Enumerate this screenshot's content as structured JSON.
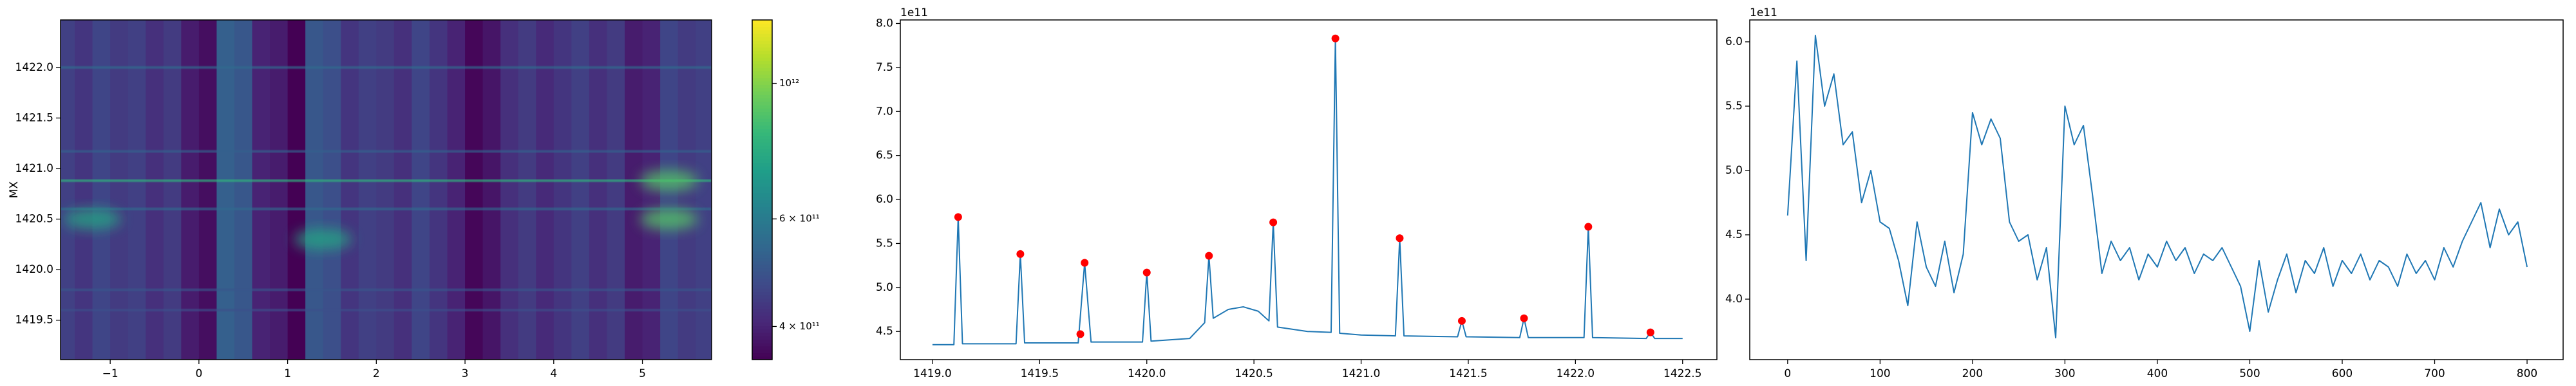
{
  "chart_data": [
    {
      "type": "heatmap",
      "ylabel": "MX",
      "xlim": [
        -1.56,
        5.78
      ],
      "ylim": [
        1419.11,
        1422.47
      ],
      "xticks": [
        {
          "value": -1,
          "label": "−1"
        },
        0,
        1,
        2,
        3,
        4,
        5
      ],
      "yticks": [
        1419.5,
        {
          "value": 1420.0,
          "label": "1420.0"
        },
        1420.5,
        {
          "value": 1421.0,
          "label": "1421.0"
        },
        1421.5,
        {
          "value": 1422.0,
          "label": "1422.0"
        }
      ],
      "x_edges": [
        -1.6,
        -1.4,
        -1.2,
        -1.0,
        -0.8,
        -0.6,
        -0.4,
        -0.2,
        0.0,
        0.2,
        0.4,
        0.6,
        0.8,
        1.0,
        1.2,
        1.4,
        1.6,
        1.8,
        2.0,
        2.2,
        2.4,
        2.6,
        2.8,
        3.0,
        3.2,
        3.4,
        3.6,
        3.8,
        4.0,
        4.2,
        4.4,
        4.6,
        4.8,
        5.0,
        5.2,
        5.4,
        5.6,
        5.8
      ],
      "column_values": [
        450000000000.0,
        430000000000.0,
        460000000000.0,
        440000000000.0,
        450000000000.0,
        420000000000.0,
        440000000000.0,
        390000000000.0,
        370000000000.0,
        520000000000.0,
        500000000000.0,
        400000000000.0,
        390000000000.0,
        350000000000.0,
        500000000000.0,
        480000000000.0,
        430000000000.0,
        450000000000.0,
        440000000000.0,
        420000000000.0,
        460000000000.0,
        430000000000.0,
        400000000000.0,
        360000000000.0,
        380000000000.0,
        420000000000.0,
        440000000000.0,
        410000000000.0,
        430000000000.0,
        450000000000.0,
        420000000000.0,
        440000000000.0,
        390000000000.0,
        400000000000.0,
        460000000000.0,
        440000000000.0,
        450000000000.0
      ],
      "row_lines": [
        {
          "y": 1422.0,
          "value": 550000000000.0
        },
        {
          "y": 1421.17,
          "value": 520000000000.0
        },
        {
          "y": 1420.88,
          "value": 800000000000.0
        },
        {
          "y": 1420.6,
          "value": 550000000000.0
        },
        {
          "y": 1419.8,
          "value": 500000000000.0
        },
        {
          "y": 1419.6,
          "value": 480000000000.0
        }
      ],
      "blobs": [
        {
          "x": -1.2,
          "y": 1420.5,
          "value": 750000000000.0
        },
        {
          "x": 1.4,
          "y": 1420.3,
          "value": 750000000000.0
        },
        {
          "x": 5.3,
          "y": 1420.5,
          "value": 900000000000.0
        },
        {
          "x": 5.3,
          "y": 1420.88,
          "value": 900000000000.0
        }
      ],
      "colorbar": {
        "log": true,
        "lim": [
          353000000000.0,
          1270000000000.0
        ],
        "ticks": [
          {
            "value": 400000000000.0,
            "label": "4 × 10¹¹"
          },
          {
            "value": 600000000000.0,
            "label": "6 × 10¹¹"
          },
          {
            "value": 1000000000000.0,
            "label": "10¹²"
          }
        ]
      }
    },
    {
      "type": "line",
      "offset_text": "1e11",
      "color": "#1f77b4",
      "xlim": [
        1418.85,
        1422.66
      ],
      "ylim": [
        4.18,
        8.04
      ],
      "xticks": [
        {
          "value": 1419.0,
          "label": "1419.0"
        },
        1419.5,
        {
          "value": 1420.0,
          "label": "1420.0"
        },
        1420.5,
        {
          "value": 1421.0,
          "label": "1421.0"
        },
        1421.5,
        {
          "value": 1422.0,
          "label": "1422.0"
        },
        1422.5
      ],
      "yticks": [
        4.5,
        {
          "value": 5.0,
          "label": "5.0"
        },
        5.5,
        {
          "value": 6.0,
          "label": "6.0"
        },
        6.5,
        {
          "value": 7.0,
          "label": "7.0"
        },
        7.5,
        {
          "value": 8.0,
          "label": "8.0"
        }
      ],
      "x": [
        1419.0,
        1419.1,
        1419.12,
        1419.14,
        1419.39,
        1419.41,
        1419.43,
        1419.68,
        1419.71,
        1419.74,
        1419.98,
        1420.0,
        1420.02,
        1420.2,
        1420.27,
        1420.29,
        1420.31,
        1420.38,
        1420.45,
        1420.52,
        1420.57,
        1420.59,
        1420.61,
        1420.75,
        1420.86,
        1420.88,
        1420.9,
        1421.0,
        1421.16,
        1421.18,
        1421.2,
        1421.45,
        1421.47,
        1421.49,
        1421.74,
        1421.76,
        1421.78,
        1422.04,
        1422.06,
        1422.08,
        1422.33,
        1422.35,
        1422.37,
        1422.5
      ],
      "values": [
        4.35,
        4.35,
        5.8,
        4.36,
        4.36,
        5.38,
        4.37,
        4.37,
        5.28,
        4.38,
        4.38,
        5.17,
        4.39,
        4.42,
        4.6,
        5.36,
        4.65,
        4.75,
        4.78,
        4.73,
        4.62,
        5.74,
        4.55,
        4.5,
        4.49,
        7.83,
        4.48,
        4.46,
        4.45,
        5.56,
        4.45,
        4.44,
        4.62,
        4.44,
        4.43,
        4.65,
        4.43,
        4.43,
        5.69,
        4.43,
        4.42,
        4.49,
        4.42,
        4.42
      ],
      "peaks": {
        "color": "#ff0000",
        "x": [
          1419.12,
          1419.41,
          1419.69,
          1419.71,
          1420.0,
          1420.29,
          1420.59,
          1420.88,
          1421.18,
          1421.47,
          1421.76,
          1422.06,
          1422.35
        ],
        "values": [
          5.8,
          5.38,
          4.47,
          5.28,
          5.17,
          5.36,
          5.74,
          7.83,
          5.56,
          4.62,
          4.65,
          5.69,
          4.49
        ]
      }
    },
    {
      "type": "line",
      "offset_text": "1e11",
      "color": "#1f77b4",
      "xlim": [
        -41,
        839
      ],
      "ylim": [
        3.53,
        6.17
      ],
      "xticks": [
        0,
        100,
        200,
        300,
        400,
        500,
        600,
        700,
        800
      ],
      "yticks": [
        {
          "value": 4.0,
          "label": "4.0"
        },
        4.5,
        {
          "value": 5.0,
          "label": "5.0"
        },
        5.5,
        {
          "value": 6.0,
          "label": "6.0"
        }
      ],
      "x": [
        0,
        10,
        20,
        30,
        40,
        50,
        60,
        70,
        80,
        90,
        100,
        110,
        120,
        130,
        140,
        150,
        160,
        170,
        180,
        190,
        200,
        210,
        220,
        230,
        240,
        250,
        260,
        270,
        280,
        290,
        300,
        310,
        320,
        330,
        340,
        350,
        360,
        370,
        380,
        390,
        400,
        410,
        420,
        430,
        440,
        450,
        460,
        470,
        480,
        490,
        500,
        510,
        520,
        530,
        540,
        550,
        560,
        570,
        580,
        590,
        600,
        610,
        620,
        630,
        640,
        650,
        660,
        670,
        680,
        690,
        700,
        710,
        720,
        730,
        740,
        750,
        760,
        770,
        780,
        790,
        800
      ],
      "values": [
        4.65,
        5.85,
        4.3,
        6.05,
        5.5,
        5.75,
        5.2,
        5.3,
        4.75,
        5.0,
        4.6,
        4.55,
        4.3,
        3.95,
        4.6,
        4.25,
        4.1,
        4.45,
        4.05,
        4.35,
        5.45,
        5.2,
        5.4,
        5.25,
        4.6,
        4.45,
        4.5,
        4.15,
        4.4,
        3.7,
        5.5,
        5.2,
        5.35,
        4.8,
        4.2,
        4.45,
        4.3,
        4.4,
        4.15,
        4.35,
        4.25,
        4.45,
        4.3,
        4.4,
        4.2,
        4.35,
        4.3,
        4.4,
        4.25,
        4.1,
        3.75,
        4.3,
        3.9,
        4.15,
        4.35,
        4.05,
        4.3,
        4.2,
        4.4,
        4.1,
        4.3,
        4.2,
        4.35,
        4.15,
        4.3,
        4.25,
        4.1,
        4.35,
        4.2,
        4.3,
        4.15,
        4.4,
        4.25,
        4.45,
        4.6,
        4.75,
        4.4,
        4.7,
        4.5,
        4.6,
        4.25
      ]
    }
  ]
}
